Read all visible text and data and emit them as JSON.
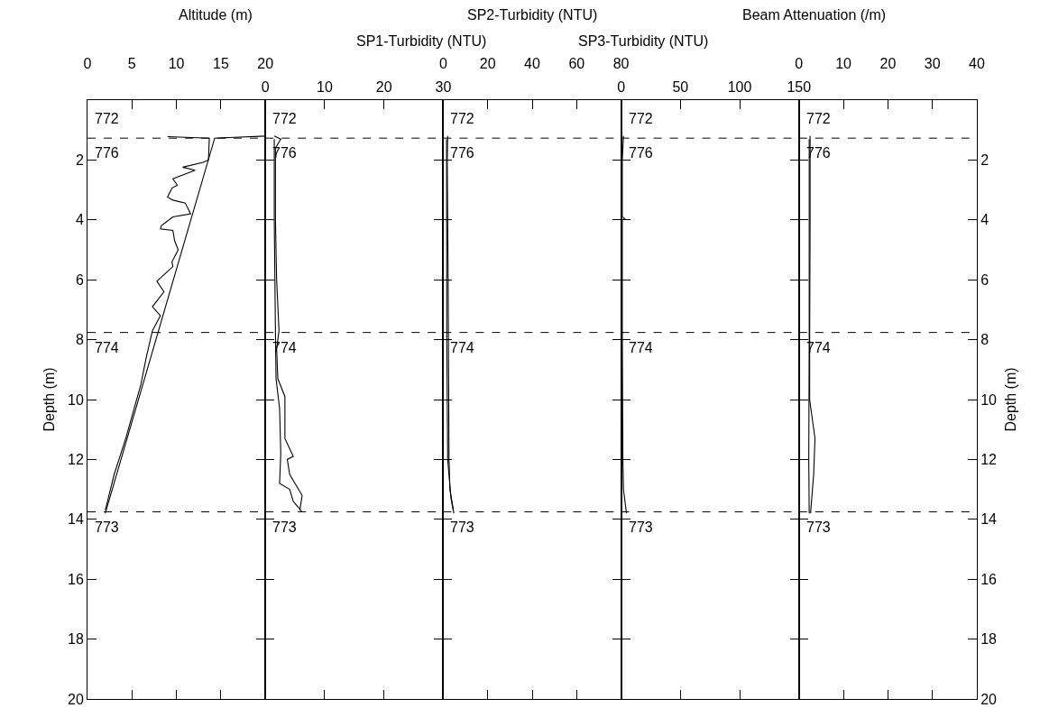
{
  "chart_data": [
    {
      "type": "line",
      "xlabel": "Altitude (m)",
      "ylabel": "Depth (m)",
      "xlim": [
        0,
        20
      ],
      "xticks": [
        0,
        5,
        10,
        15,
        20
      ],
      "ylim": [
        20,
        0
      ],
      "yticks": [
        2,
        4,
        6,
        8,
        10,
        12,
        14,
        16,
        18,
        20
      ],
      "marker": "none",
      "line_style": "solid",
      "series": [
        {
          "color": "#000000",
          "x": [
            20,
            14.3,
            2.0
          ],
          "values": [
            1.2,
            1.27,
            13.8
          ]
        },
        {
          "color": "#000000",
          "x": [
            9.0,
            13.7,
            13.6,
            13.0,
            10.7,
            12.1,
            9.6,
            10.1,
            9.5,
            9.0,
            9.6,
            11.0,
            11.6,
            9.6,
            8.3,
            8.2,
            9.6,
            9.8,
            10.2,
            9.5,
            9.6,
            7.8,
            8.6,
            7.3,
            8.2,
            7.3,
            6.6,
            6.0,
            4.3,
            3.0,
            2.0
          ],
          "values": [
            1.22,
            1.27,
            2.0,
            2.08,
            2.24,
            2.34,
            2.63,
            2.84,
            2.94,
            3.24,
            3.34,
            3.44,
            3.8,
            3.9,
            4.2,
            4.3,
            4.35,
            4.7,
            5.0,
            5.4,
            5.56,
            6.05,
            6.4,
            6.9,
            7.2,
            7.7,
            8.6,
            9.5,
            11.3,
            12.5,
            13.7
          ]
        }
      ],
      "ref_lines": [
        {
          "axis": "y",
          "value": 1.27,
          "color": "#000000",
          "line_style": "dashed"
        },
        {
          "axis": "y",
          "value": 7.76,
          "color": "#000000",
          "line_style": "dashed"
        },
        {
          "axis": "y",
          "value": 13.75,
          "color": "#000000",
          "line_style": "dashed"
        }
      ],
      "annotations": [
        "772",
        "776",
        "774",
        "773"
      ]
    },
    {
      "type": "line",
      "xlabel": "SP1-Turbidity (NTU)",
      "xlim": [
        0,
        30
      ],
      "xticks": [
        0,
        10,
        20,
        30
      ],
      "ylim": [
        20,
        0
      ],
      "yticks": [
        2,
        4,
        6,
        8,
        10,
        12,
        14,
        16,
        18,
        20
      ],
      "tick_labels": "x",
      "marker": "none",
      "line_style": "solid",
      "series": [
        {
          "color": "#000000",
          "x": [
            1.5,
            2.6,
            1.7,
            1.7,
            1.9,
            2.3,
            1.9,
            2.1,
            3.3,
            3.3,
            4.7,
            3.7,
            4.1,
            6.2,
            5.8
          ],
          "values": [
            1.2,
            1.3,
            1.6,
            4,
            6,
            7.7,
            8.3,
            9.3,
            9.9,
            11.3,
            11.9,
            12.0,
            12.5,
            13.2,
            13.7
          ]
        },
        {
          "color": "#000000",
          "x": [
            1.5,
            1.5,
            1.7,
            1.8,
            2.4,
            2.6,
            2.4,
            4.1,
            4.7,
            6.2
          ],
          "values": [
            1.3,
            4,
            7.7,
            9.3,
            10.3,
            11.8,
            12.8,
            13.0,
            13.4,
            13.75
          ]
        }
      ],
      "ref_lines": [
        {
          "axis": "y",
          "value": 1.27,
          "color": "#000000",
          "line_style": "dashed"
        },
        {
          "axis": "y",
          "value": 7.76,
          "color": "#000000",
          "line_style": "dashed"
        },
        {
          "axis": "y",
          "value": 13.75,
          "color": "#000000",
          "line_style": "dashed"
        }
      ],
      "annotations": [
        "772",
        "776",
        "774",
        "773"
      ]
    },
    {
      "type": "line",
      "xlabel": "SP2-Turbidity (NTU)",
      "xlim": [
        0,
        80
      ],
      "xticks": [
        0,
        20,
        40,
        60,
        80
      ],
      "ylim": [
        20,
        0
      ],
      "yticks": [
        2,
        4,
        6,
        8,
        10,
        12,
        14,
        16,
        18,
        20
      ],
      "tick_labels": "x",
      "marker": "none",
      "line_style": "solid",
      "series": [
        {
          "color": "#000000",
          "x": [
            2,
            1.8,
            2.2,
            2.4,
            2.6,
            3,
            4.8
          ],
          "values": [
            1.2,
            2,
            6,
            9,
            12,
            13,
            13.8
          ]
        },
        {
          "color": "#000000",
          "x": [
            1.5,
            1.6,
            2,
            3.5,
            4.5
          ],
          "values": [
            1.3,
            8,
            12,
            13.3,
            13.7
          ]
        }
      ],
      "ref_lines": [
        {
          "axis": "y",
          "value": 1.27,
          "color": "#000000",
          "line_style": "dashed"
        },
        {
          "axis": "y",
          "value": 7.76,
          "color": "#000000",
          "line_style": "dashed"
        },
        {
          "axis": "y",
          "value": 13.75,
          "color": "#000000",
          "line_style": "dashed"
        }
      ],
      "annotations": [
        "772",
        "776",
        "774",
        "773"
      ]
    },
    {
      "type": "line",
      "xlabel": "SP3-Turbidity (NTU)",
      "xlim": [
        0,
        150
      ],
      "xticks": [
        0,
        50,
        100,
        150
      ],
      "ylim": [
        20,
        0
      ],
      "yticks": [
        2,
        4,
        6,
        8,
        10,
        12,
        14,
        16,
        18,
        20
      ],
      "tick_labels": "x",
      "marker": "none",
      "line_style": "solid",
      "series": [
        {
          "color": "#000000",
          "x": [
            2,
            1,
            1,
            3,
            1,
            1,
            1.5,
            2,
            4.5
          ],
          "values": [
            1.2,
            2,
            3.9,
            3.95,
            4.0,
            7.7,
            12,
            13,
            13.8
          ]
        }
      ],
      "ref_lines": [
        {
          "axis": "y",
          "value": 1.27,
          "color": "#000000",
          "line_style": "dashed"
        },
        {
          "axis": "y",
          "value": 7.76,
          "color": "#000000",
          "line_style": "dashed"
        },
        {
          "axis": "y",
          "value": 13.75,
          "color": "#000000",
          "line_style": "dashed"
        }
      ],
      "annotations": [
        "772",
        "776",
        "774",
        "773"
      ]
    },
    {
      "type": "line",
      "xlabel": "Beam Attenuation (/m)",
      "ylabel": "Depth (m)",
      "xlim": [
        0,
        40
      ],
      "xticks": [
        0,
        10,
        20,
        30,
        40
      ],
      "ylim": [
        20,
        0
      ],
      "yticks": [
        2,
        4,
        6,
        8,
        10,
        12,
        14,
        16,
        18,
        20
      ],
      "marker": "none",
      "line_style": "solid",
      "series": [
        {
          "color": "#000000",
          "x": [
            2.5,
            2.5,
            2.4,
            2.4,
            3.6,
            3.3,
            2.6
          ],
          "values": [
            1.2,
            4,
            8,
            10,
            11.3,
            12.5,
            13.8
          ]
        },
        {
          "color": "#000000",
          "x": [
            2.3,
            2.3,
            2.2,
            2.3
          ],
          "values": [
            1.3,
            8,
            12,
            13.8
          ]
        }
      ],
      "ref_lines": [
        {
          "axis": "y",
          "value": 1.27,
          "color": "#000000",
          "line_style": "dashed"
        },
        {
          "axis": "y",
          "value": 7.76,
          "color": "#000000",
          "line_style": "dashed"
        },
        {
          "axis": "y",
          "value": 13.75,
          "color": "#000000",
          "line_style": "dashed"
        }
      ],
      "annotations": [
        "772",
        "776",
        "774",
        "773"
      ]
    }
  ]
}
